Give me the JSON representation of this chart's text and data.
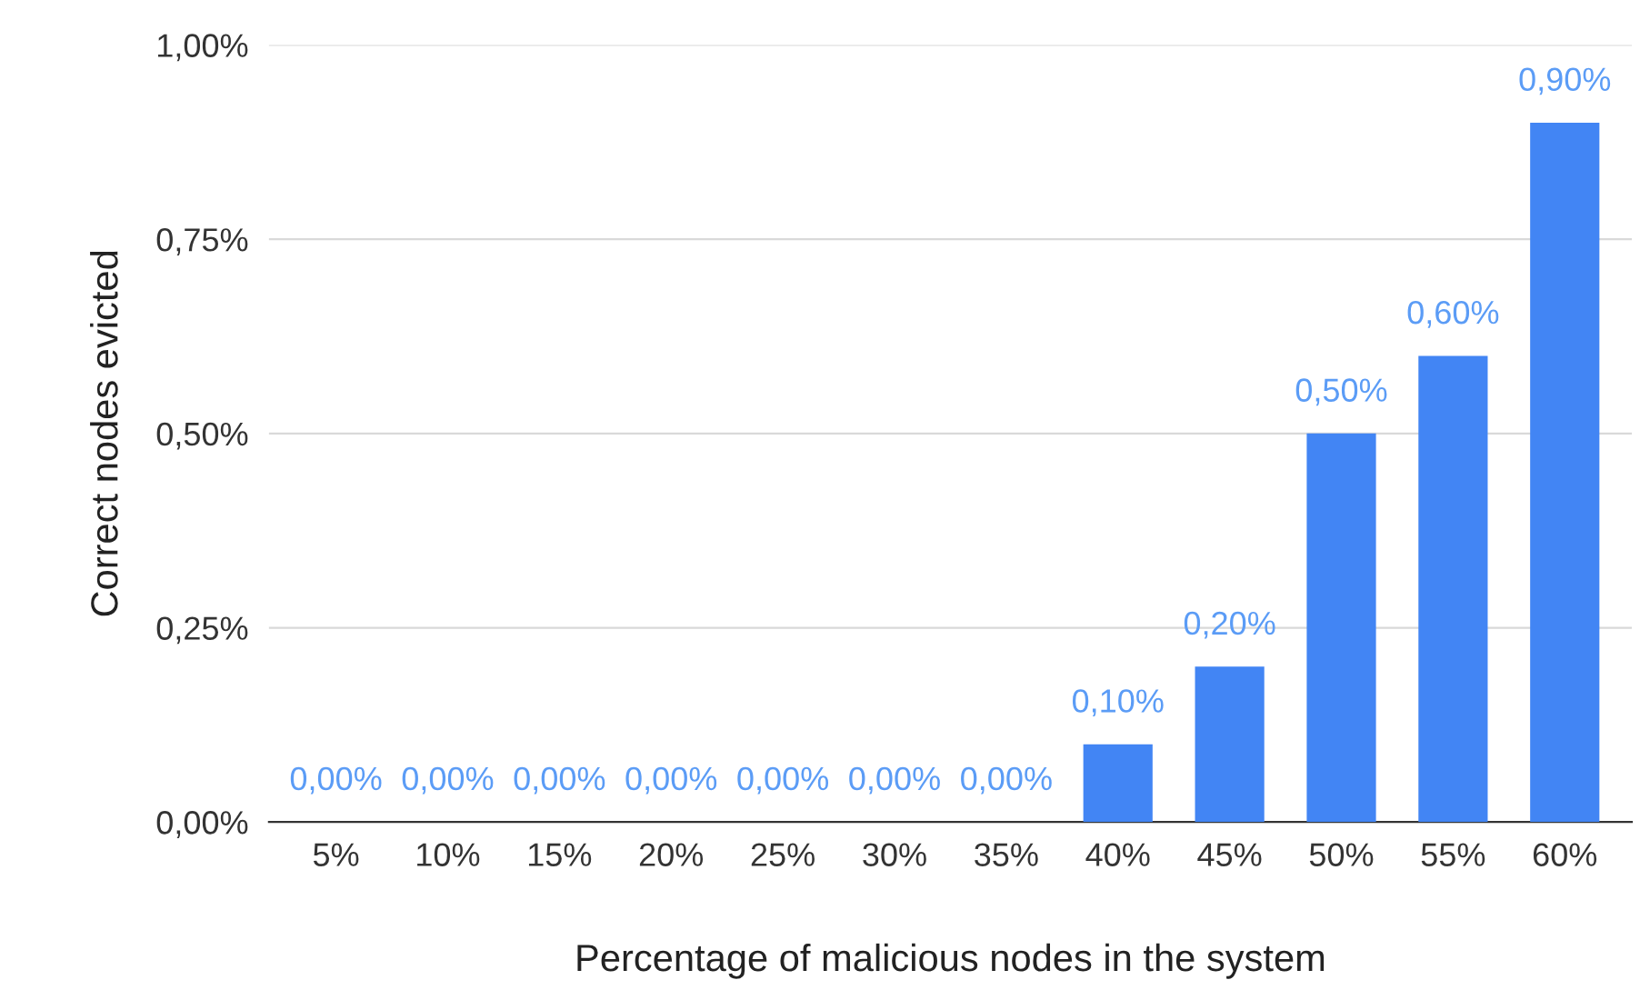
{
  "chart_data": {
    "type": "bar",
    "xlabel": "Percentage of malicious nodes in the system",
    "ylabel": "Correct nodes evicted",
    "categories": [
      "5%",
      "10%",
      "15%",
      "20%",
      "25%",
      "30%",
      "35%",
      "40%",
      "45%",
      "50%",
      "55%",
      "60%"
    ],
    "series": [
      {
        "color": "#4285f4",
        "values": [
          0,
          0,
          0,
          0,
          0,
          0,
          0,
          0.1,
          0.2,
          0.5,
          0.6,
          0.9
        ],
        "value_labels": [
          "0,00%",
          "0,00%",
          "0,00%",
          "0,00%",
          "0,00%",
          "0,00%",
          "0,00%",
          "0,10%",
          "0,20%",
          "0,50%",
          "0,60%",
          "0,90%"
        ]
      }
    ],
    "ylim": [
      0,
      1
    ],
    "yticks": [
      {
        "value": 0,
        "label": "0,00%"
      },
      {
        "value": 0.25,
        "label": "0,25%"
      },
      {
        "value": 0.5,
        "label": "0,50%"
      },
      {
        "value": 0.75,
        "label": "0,75%"
      },
      {
        "value": 1,
        "label": "1,00%"
      }
    ],
    "grid": "y"
  }
}
